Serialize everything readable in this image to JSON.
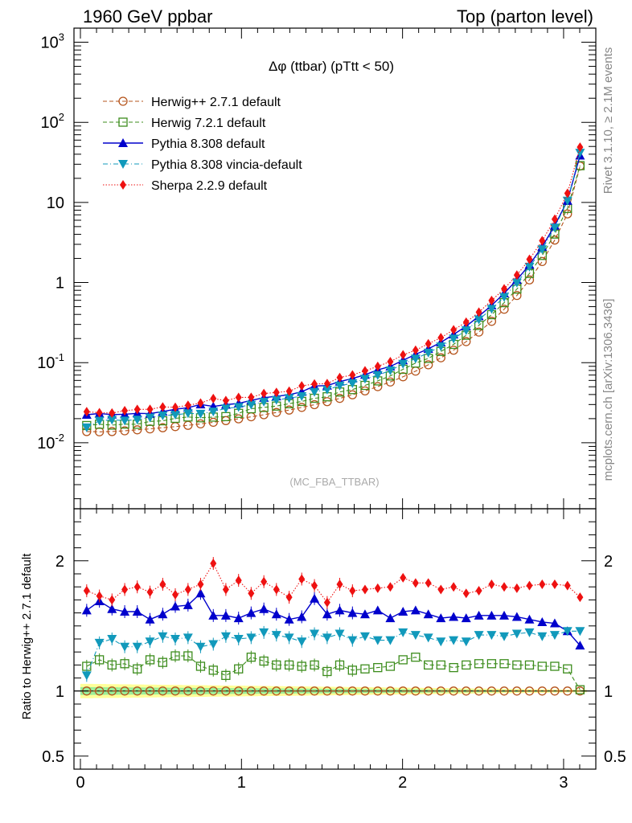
{
  "header": {
    "left": "1960 GeV ppbar",
    "right": "Top (parton level)"
  },
  "side_labels": {
    "rivet": "Rivet 3.1.10, ≥ 2.1M events",
    "mcplots": "mcplots.cern.ch [arXiv:1306.3436]"
  },
  "chart_data": {
    "type": "line",
    "title": "Δφ (ttbar) (pTtt < 50)",
    "analysis_tag": "(MC_FBA_TTBAR)",
    "x": [
      0.039,
      0.118,
      0.196,
      0.275,
      0.353,
      0.432,
      0.511,
      0.589,
      0.668,
      0.746,
      0.825,
      0.903,
      0.982,
      1.06,
      1.139,
      1.217,
      1.296,
      1.374,
      1.453,
      1.532,
      1.61,
      1.689,
      1.767,
      1.846,
      1.924,
      2.003,
      2.081,
      2.16,
      2.238,
      2.317,
      2.395,
      2.474,
      2.553,
      2.631,
      2.71,
      2.788,
      2.867,
      2.945,
      3.024,
      3.102
    ],
    "xlim": [
      -0.04,
      3.2
    ],
    "xticks": [
      "0",
      "1",
      "2",
      "3"
    ],
    "main_panel": {
      "scale": "log",
      "ylim": [
        0.0015,
        1500
      ],
      "yticks": [
        "10^-2",
        "10^-1",
        "1",
        "10",
        "10^2",
        "10^3"
      ]
    },
    "ratio_panel": {
      "ylabel": "Ratio to Herwig++ 2.7.1 default",
      "ylim": [
        0.4,
        2.4
      ],
      "yticks": [
        "0.5",
        "1",
        "2"
      ]
    },
    "legend_position": "top-left",
    "series": [
      {
        "name": "Herwig++ 2.7.1 default",
        "color": "#b5541c",
        "marker": "open-circle",
        "line": "dashed",
        "ratio": [
          1.0,
          1.0,
          1.0,
          1.0,
          1.0,
          1.0,
          1.0,
          1.0,
          1.0,
          1.0,
          1.0,
          1.0,
          1.0,
          1.0,
          1.0,
          1.0,
          1.0,
          1.0,
          1.0,
          1.0,
          1.0,
          1.0,
          1.0,
          1.0,
          1.0,
          1.0,
          1.0,
          1.0,
          1.0,
          1.0,
          1.0,
          1.0,
          1.0,
          1.0,
          1.0,
          1.0,
          1.0,
          1.0,
          1.0,
          1.0
        ],
        "values": [
          0.0138,
          0.0137,
          0.0138,
          0.0141,
          0.0145,
          0.0149,
          0.0154,
          0.0159,
          0.0165,
          0.0172,
          0.018,
          0.0189,
          0.0199,
          0.0211,
          0.0224,
          0.0239,
          0.0256,
          0.0276,
          0.0299,
          0.0326,
          0.0358,
          0.0397,
          0.0444,
          0.0502,
          0.0574,
          0.0666,
          0.0784,
          0.094,
          0.115,
          0.143,
          0.183,
          0.241,
          0.328,
          0.464,
          0.69,
          1.08,
          1.83,
          3.39,
          7.2,
          28.5
        ]
      },
      {
        "name": "Herwig 7.2.1 default",
        "color": "#3c8c1c",
        "marker": "open-square",
        "line": "dashed",
        "ratio": [
          1.19,
          1.24,
          1.2,
          1.21,
          1.17,
          1.24,
          1.22,
          1.27,
          1.27,
          1.19,
          1.16,
          1.12,
          1.17,
          1.26,
          1.23,
          1.2,
          1.2,
          1.19,
          1.2,
          1.15,
          1.2,
          1.16,
          1.17,
          1.18,
          1.19,
          1.24,
          1.26,
          1.2,
          1.2,
          1.18,
          1.2,
          1.21,
          1.21,
          1.21,
          1.2,
          1.2,
          1.19,
          1.19,
          1.17,
          1.01
        ],
        "values": [
          0.0164,
          0.017,
          0.0166,
          0.0171,
          0.017,
          0.0185,
          0.0188,
          0.0202,
          0.021,
          0.0205,
          0.0209,
          0.0212,
          0.0233,
          0.0266,
          0.0276,
          0.0287,
          0.0307,
          0.0328,
          0.0359,
          0.0375,
          0.043,
          0.0461,
          0.052,
          0.0592,
          0.0683,
          0.0826,
          0.0988,
          0.113,
          0.138,
          0.169,
          0.22,
          0.292,
          0.397,
          0.561,
          0.828,
          1.3,
          2.18,
          4.03,
          8.42,
          28.8
        ]
      },
      {
        "name": "Pythia 8.308 default",
        "color": "#0000cc",
        "marker": "filled-triangle-up",
        "line": "solid",
        "ratio": [
          1.62,
          1.69,
          1.63,
          1.61,
          1.61,
          1.55,
          1.59,
          1.65,
          1.66,
          1.75,
          1.58,
          1.58,
          1.56,
          1.6,
          1.63,
          1.59,
          1.55,
          1.57,
          1.71,
          1.59,
          1.62,
          1.6,
          1.59,
          1.62,
          1.56,
          1.61,
          1.62,
          1.59,
          1.56,
          1.57,
          1.56,
          1.58,
          1.58,
          1.58,
          1.57,
          1.55,
          1.53,
          1.52,
          1.46,
          1.35
        ],
        "values": [
          0.0224,
          0.0232,
          0.0225,
          0.0227,
          0.0233,
          0.0231,
          0.0245,
          0.0262,
          0.0274,
          0.0301,
          0.0284,
          0.0299,
          0.031,
          0.0338,
          0.0365,
          0.038,
          0.0397,
          0.0433,
          0.0511,
          0.0518,
          0.058,
          0.0635,
          0.0706,
          0.0813,
          0.0895,
          0.107,
          0.127,
          0.149,
          0.179,
          0.225,
          0.285,
          0.381,
          0.518,
          0.733,
          1.08,
          1.67,
          2.8,
          5.15,
          10.5,
          38.5
        ]
      },
      {
        "name": "Pythia 8.308 vincia-default",
        "color": "#1199bb",
        "marker": "filled-triangle-down",
        "line": "dashdot",
        "ratio": [
          1.12,
          1.37,
          1.4,
          1.34,
          1.34,
          1.38,
          1.42,
          1.4,
          1.41,
          1.34,
          1.36,
          1.42,
          1.4,
          1.41,
          1.45,
          1.43,
          1.41,
          1.38,
          1.44,
          1.41,
          1.44,
          1.39,
          1.42,
          1.39,
          1.39,
          1.45,
          1.43,
          1.41,
          1.38,
          1.39,
          1.38,
          1.43,
          1.43,
          1.42,
          1.44,
          1.45,
          1.42,
          1.43,
          1.46,
          1.46
        ],
        "values": [
          0.0155,
          0.0188,
          0.0193,
          0.0189,
          0.0194,
          0.0206,
          0.0219,
          0.0223,
          0.0233,
          0.023,
          0.0245,
          0.0268,
          0.0279,
          0.0298,
          0.0325,
          0.0342,
          0.0361,
          0.0381,
          0.0431,
          0.046,
          0.0516,
          0.0552,
          0.063,
          0.0698,
          0.0798,
          0.0966,
          0.112,
          0.133,
          0.159,
          0.199,
          0.253,
          0.345,
          0.469,
          0.659,
          0.994,
          1.57,
          2.6,
          4.85,
          10.5,
          41.6
        ]
      },
      {
        "name": "Sherpa 2.2.9 default",
        "color": "#ee1111",
        "marker": "filled-diamond",
        "line": "dotted",
        "ratio": [
          1.77,
          1.73,
          1.7,
          1.78,
          1.8,
          1.76,
          1.82,
          1.74,
          1.78,
          1.82,
          1.98,
          1.78,
          1.85,
          1.75,
          1.84,
          1.78,
          1.72,
          1.86,
          1.81,
          1.68,
          1.82,
          1.77,
          1.78,
          1.79,
          1.8,
          1.87,
          1.83,
          1.83,
          1.78,
          1.8,
          1.75,
          1.77,
          1.82,
          1.8,
          1.79,
          1.81,
          1.82,
          1.82,
          1.81,
          1.72
        ],
        "values": [
          0.0244,
          0.0237,
          0.0235,
          0.0251,
          0.0261,
          0.0262,
          0.028,
          0.0277,
          0.0294,
          0.0313,
          0.0356,
          0.0336,
          0.0368,
          0.0369,
          0.0412,
          0.0425,
          0.044,
          0.0513,
          0.0541,
          0.0548,
          0.0652,
          0.0703,
          0.079,
          0.0899,
          0.103,
          0.125,
          0.143,
          0.172,
          0.205,
          0.257,
          0.32,
          0.427,
          0.597,
          0.835,
          1.24,
          1.95,
          3.33,
          6.17,
          13.0,
          49.0
        ]
      }
    ]
  }
}
